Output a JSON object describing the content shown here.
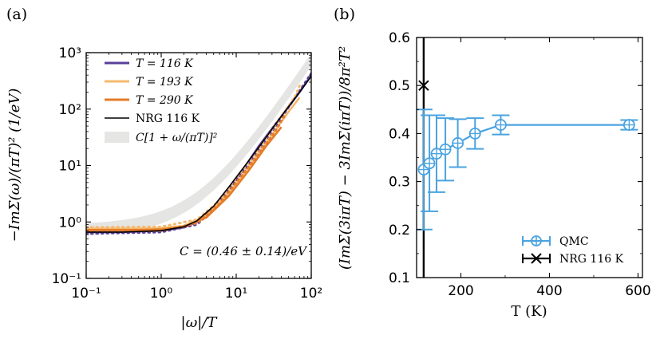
{
  "chart_data": [
    {
      "panel_label": "(a)",
      "type": "line",
      "xscale": "log",
      "yscale": "log",
      "xlim": [
        0.1,
        100
      ],
      "ylim": [
        0.1,
        1000
      ],
      "xlabel": "|ω|/T",
      "ylabel": "−ImΣ(ω)/(πT)² (1/eV)",
      "xticks": [
        {
          "v": 0.1,
          "label": "10⁻¹"
        },
        {
          "v": 1,
          "label": "10⁰"
        },
        {
          "v": 10,
          "label": "10¹"
        },
        {
          "v": 100,
          "label": "10²"
        }
      ],
      "yticks": [
        {
          "v": 0.1,
          "label": "10⁻¹"
        },
        {
          "v": 1,
          "label": "10⁰"
        },
        {
          "v": 10,
          "label": "10¹"
        },
        {
          "v": 100,
          "label": "10²"
        },
        {
          "v": 1000,
          "label": "10³"
        }
      ],
      "annotation": "C = (0.46 ± 0.14)/eV",
      "band": {
        "name": "C[1 + ω/(πT)]²",
        "color": "#e5e5e3",
        "center": 0.72,
        "err": 0.18
      },
      "series": [
        {
          "name": "T = 116 K",
          "color": "#5b3f9a",
          "solid": {
            "x": [
              0.1,
              0.3,
              1,
              2,
              3,
              5,
              8,
              12,
              20,
              30,
              50,
              70,
              100
            ],
            "y": [
              0.66,
              0.66,
              0.7,
              0.8,
              1.0,
              1.8,
              4,
              8,
              22,
              45,
              110,
              200,
              400
            ]
          },
          "dotted": {
            "x": [
              0.1,
              1,
              3,
              5,
              10,
              20,
              40,
              70,
              100
            ],
            "y": [
              0.62,
              0.66,
              0.9,
              1.7,
              5.5,
              19,
              70,
              210,
              430
            ]
          }
        },
        {
          "name": "T = 193 K",
          "color": "#f5b96d",
          "solid": {
            "x": [
              0.1,
              0.5,
              1,
              2,
              4,
              8,
              15,
              30,
              50,
              70
            ],
            "y": [
              0.76,
              0.76,
              0.78,
              0.85,
              1.3,
              3.2,
              10,
              35,
              90,
              160
            ]
          },
          "dotted": {
            "x": [
              0.1,
              1,
              3,
              6,
              10,
              20,
              40,
              60,
              70
            ],
            "y": [
              0.8,
              0.82,
              1.1,
              2.4,
              6,
              20,
              75,
              160,
              260
            ]
          }
        },
        {
          "name": "T = 290 K",
          "color": "#e57b27",
          "solid": {
            "x": [
              0.1,
              0.5,
              1,
              2,
              4,
              8,
              15,
              25,
              40
            ],
            "y": [
              0.72,
              0.72,
              0.74,
              0.82,
              1.2,
              2.9,
              8.5,
              22,
              48
            ]
          },
          "dotted": {
            "x": [
              0.1,
              1,
              3,
              6,
              10,
              20,
              35,
              45
            ],
            "y": [
              0.68,
              0.7,
              0.95,
              2.1,
              5,
              16,
              45,
              80
            ]
          }
        },
        {
          "name": "NRG 116 K",
          "color": "#000000",
          "solid": {
            "x": [
              0.1,
              0.3,
              1,
              2,
              3,
              5,
              8,
              12,
              20,
              40,
              70,
              100
            ],
            "y": [
              0.66,
              0.66,
              0.7,
              0.82,
              1.05,
              1.9,
              4.2,
              8.5,
              21,
              75,
              200,
              380
            ]
          }
        }
      ]
    },
    {
      "panel_label": "(b)",
      "type": "line",
      "xlim": [
        100,
        610
      ],
      "ylim": [
        0.1,
        0.6
      ],
      "xlabel": "T (K)",
      "ylabel": "(ImΣ(3iπT) − 3ImΣ(iπT))/8π²T²",
      "xticks": [
        200,
        400,
        600
      ],
      "yticks": [
        0.1,
        0.2,
        0.3,
        0.4,
        0.5,
        0.6
      ],
      "series": [
        {
          "name": "QMC",
          "color": "#4aa3e0",
          "marker": "circle-plus",
          "x": [
            116,
            129,
            145,
            165,
            193,
            232,
            290,
            580
          ],
          "y": [
            0.325,
            0.338,
            0.358,
            0.367,
            0.38,
            0.4,
            0.418,
            0.418
          ],
          "err": [
            0.125,
            0.1,
            0.08,
            0.065,
            0.05,
            0.032,
            0.02,
            0.01
          ]
        },
        {
          "name": "NRG 116 K",
          "color": "#000000",
          "marker": "x",
          "x": [
            116
          ],
          "y": [
            0.5
          ],
          "vline_x": 116
        }
      ]
    }
  ]
}
